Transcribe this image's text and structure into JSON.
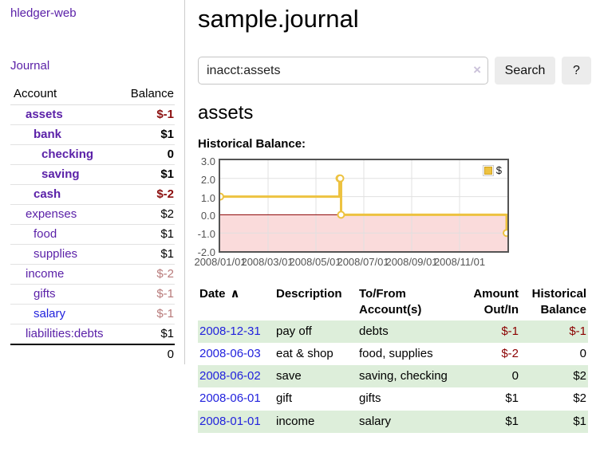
{
  "sidebar": {
    "app_title": "hledger-web",
    "journal_link": "Journal",
    "accounts_table": {
      "headers": [
        "Account",
        "Balance"
      ],
      "rows": [
        {
          "account": "assets",
          "depth": 1,
          "bold": true,
          "balance": "$-1",
          "balance_style": "neg-strong"
        },
        {
          "account": "bank",
          "depth": 2,
          "bold": true,
          "balance": "$1",
          "balance_style": "pos"
        },
        {
          "account": "checking",
          "depth": 3,
          "bold": true,
          "balance": "0",
          "balance_style": "pos"
        },
        {
          "account": "saving",
          "depth": 3,
          "bold": true,
          "balance": "$1",
          "balance_style": "pos"
        },
        {
          "account": "cash",
          "depth": 2,
          "bold": true,
          "balance": "$-2",
          "balance_style": "neg-strong"
        },
        {
          "account": "expenses",
          "depth": 1,
          "bold": false,
          "balance": "$2",
          "balance_style": "pos"
        },
        {
          "account": "food",
          "depth": 2,
          "bold": false,
          "balance": "$1",
          "balance_style": "pos"
        },
        {
          "account": "supplies",
          "depth": 2,
          "bold": false,
          "balance": "$1",
          "balance_style": "pos"
        },
        {
          "account": "income",
          "depth": 1,
          "bold": false,
          "balance": "$-2",
          "balance_style": "neg-muted"
        },
        {
          "account": "gifts",
          "depth": 2,
          "bold": false,
          "balance": "$-1",
          "balance_style": "neg-muted"
        },
        {
          "account": "salary",
          "depth": 2,
          "bold": false,
          "link_color": "blue",
          "balance": "$-1",
          "balance_style": "neg-muted"
        },
        {
          "account": "liabilities:debts",
          "depth": 1,
          "bold": false,
          "balance": "$1",
          "balance_style": "pos"
        }
      ],
      "total": "0"
    }
  },
  "header": {
    "title": "sample.journal"
  },
  "search": {
    "value": "inacct:assets",
    "clear_icon": "×",
    "button_label": "Search",
    "help_label": "?"
  },
  "main": {
    "account_heading": "assets",
    "chart_heading": "Historical Balance:"
  },
  "chart_data": {
    "type": "line",
    "title": "Historical Balance:",
    "step": true,
    "series": [
      {
        "name": "$",
        "color": "#edc240",
        "points": [
          [
            "2008-01-01",
            1
          ],
          [
            "2008-06-01",
            2
          ],
          [
            "2008-06-02",
            2
          ],
          [
            "2008-06-03",
            0
          ],
          [
            "2008-12-31",
            -1
          ]
        ]
      }
    ],
    "xlim": [
      "2008-01-01",
      "2009-01-01"
    ],
    "ylim": [
      -2,
      3
    ],
    "y_ticks": [
      "3.0",
      "2.0",
      "1.0",
      "0.0",
      "-1.0",
      "-2.0"
    ],
    "x_ticks": [
      {
        "label": "2008/01/01",
        "date": "2008-01-01"
      },
      {
        "label": "2008/03/01",
        "date": "2008-03-01"
      },
      {
        "label": "2008/05/01",
        "date": "2008-05-01"
      },
      {
        "label": "2008/07/01",
        "date": "2008-07-01"
      },
      {
        "label": "2008/09/01",
        "date": "2008-09-01"
      },
      {
        "label": "2008/11/01",
        "date": "2008-11-01"
      }
    ],
    "legend": {
      "label": "$",
      "position": "top-right",
      "swatch_color": "#edc240"
    },
    "grid": true,
    "gridline_color": "#e0e0e0",
    "negative_region_color": "#fadbdb",
    "zero_line_color": "#8b0000"
  },
  "register_table": {
    "headers": {
      "date": "Date",
      "sort_icon": "∧",
      "description": "Description",
      "accounts": "To/From Account(s)",
      "amount": "Amount Out/In",
      "balance": "Historical Balance"
    },
    "rows": [
      {
        "date": "2008-12-31",
        "description": "pay off",
        "accounts": "debts",
        "amount": "$-1",
        "amount_neg": true,
        "balance": "$-1",
        "balance_neg": true
      },
      {
        "date": "2008-06-03",
        "description": "eat & shop",
        "accounts": "food, supplies",
        "amount": "$-2",
        "amount_neg": true,
        "balance": "0",
        "balance_neg": false
      },
      {
        "date": "2008-06-02",
        "description": "save",
        "accounts": "saving, checking",
        "amount": "0",
        "amount_neg": false,
        "balance": "$2",
        "balance_neg": false
      },
      {
        "date": "2008-06-01",
        "description": "gift",
        "accounts": "gifts",
        "amount": "$1",
        "amount_neg": false,
        "balance": "$2",
        "balance_neg": false
      },
      {
        "date": "2008-01-01",
        "description": "income",
        "accounts": "salary",
        "amount": "$1",
        "amount_neg": false,
        "balance": "$1",
        "balance_neg": false
      }
    ]
  }
}
